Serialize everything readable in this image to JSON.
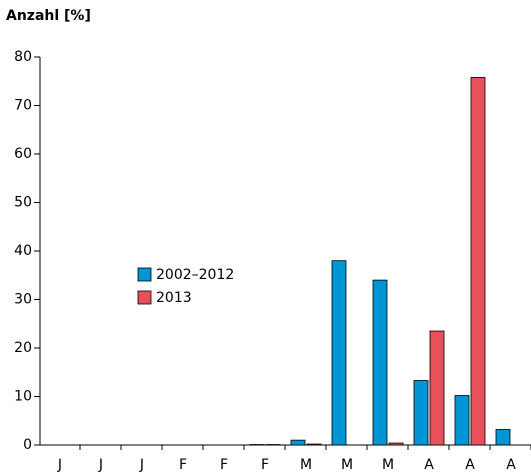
{
  "chart_data": {
    "type": "bar",
    "axis_label": "Anzahl [%]",
    "categories": [
      "J",
      "J",
      "J",
      "F",
      "F",
      "F",
      "M",
      "M",
      "M",
      "A",
      "A",
      "A"
    ],
    "series": [
      {
        "name": "2002–2012",
        "color": "#0096d6",
        "values": [
          0,
          0,
          0,
          0,
          0,
          0.1,
          1,
          38,
          34,
          13.3,
          10.2,
          3.2
        ]
      },
      {
        "name": "2013",
        "color": "#e8505b",
        "values": [
          0,
          0,
          0,
          0,
          0,
          0.1,
          0.2,
          0,
          0.4,
          23.5,
          75.8,
          0
        ]
      }
    ],
    "ylim": [
      0,
      80
    ],
    "yticks": [
      0,
      10,
      20,
      30,
      40,
      50,
      60,
      70,
      80
    ],
    "grid": false
  }
}
